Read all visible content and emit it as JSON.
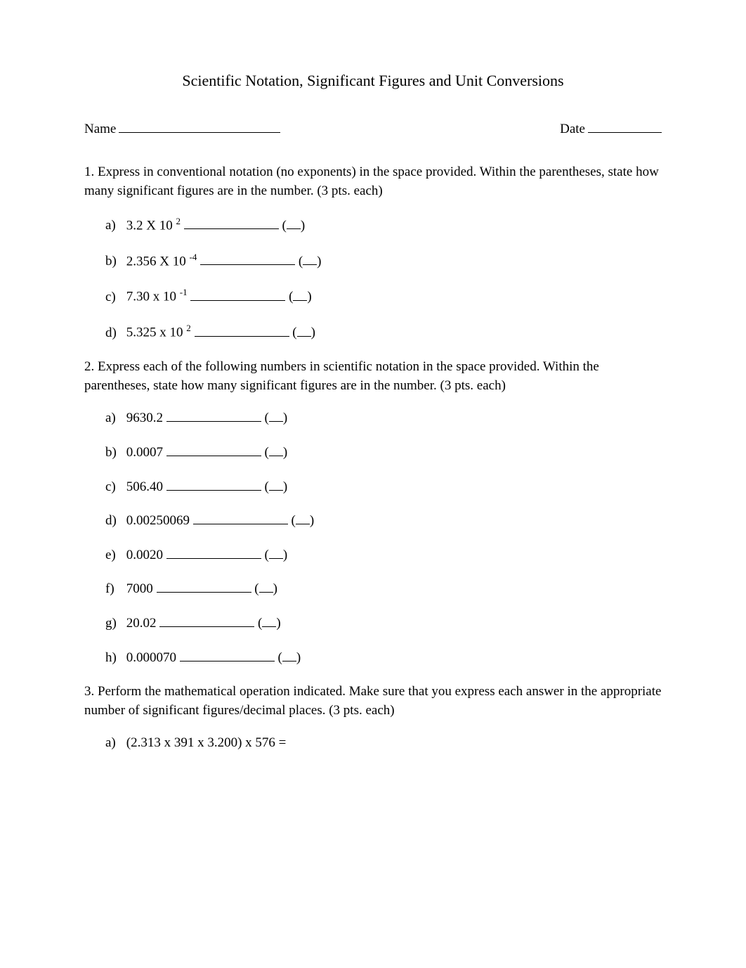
{
  "title": "Scientific Notation, Significant Figures and Unit Conversions",
  "header": {
    "name_label": "Name",
    "date_label": "Date"
  },
  "q1": {
    "text": "1. Express in conventional notation (no exponents) in the space provided. Within the parentheses, state how many significant figures are in the number. (3 pts. each)",
    "items": {
      "a": {
        "label": "a)",
        "prefix": "3.2 X 10 ",
        "exp": "2"
      },
      "b": {
        "label": "b)",
        "prefix": "2.356 X 10 ",
        "exp": "-4"
      },
      "c": {
        "label": "c)",
        "prefix": "7.30 x 10 ",
        "exp": "-1"
      },
      "d": {
        "label": "d)",
        "prefix": "5.325 x 10 ",
        "exp": "2"
      }
    }
  },
  "q2": {
    "text": "2. Express each of the following numbers in scientific notation in the space provided. Within the parentheses, state how many significant figures are in the number. (3 pts. each)",
    "items": {
      "a": {
        "label": "a)",
        "value": "9630.2"
      },
      "b": {
        "label": "b)",
        "value": "0.0007"
      },
      "c": {
        "label": "c)",
        "value": "506.40"
      },
      "d": {
        "label": "d)",
        "value": "0.00250069"
      },
      "e": {
        "label": "e)",
        "value": "0.0020"
      },
      "f": {
        "label": "f)",
        "value": "7000"
      },
      "g": {
        "label": "g)",
        "value": "20.02"
      },
      "h": {
        "label": "h)",
        "value": "0.000070"
      }
    }
  },
  "q3": {
    "text": "3. Perform the mathematical operation indicated. Make sure that you express each answer in the appropriate number of significant figures/decimal places. (3 pts. each)",
    "items": {
      "a": {
        "label": "a)",
        "value": "(2.313 x 391 x 3.200) x 576 ="
      }
    }
  },
  "paren": {
    "open": "(",
    "close": ")"
  }
}
